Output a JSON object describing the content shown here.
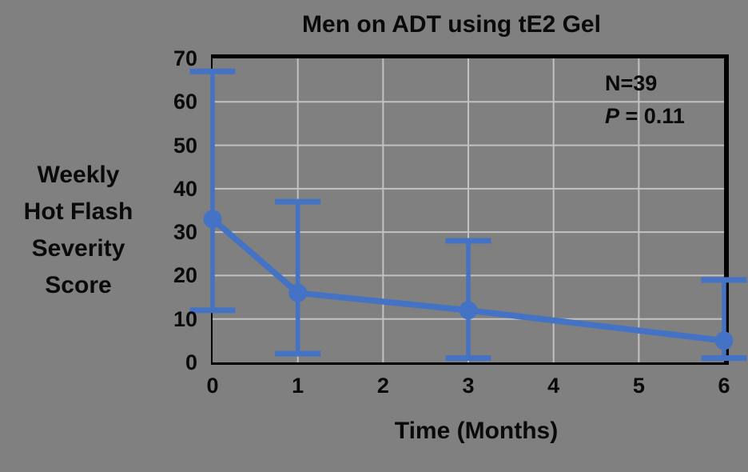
{
  "title": "Men on ADT using tE2 Gel",
  "y_axis": {
    "label_lines": [
      "Weekly",
      "Hot Flash",
      "Severity",
      "Score"
    ],
    "ticks": [
      0,
      10,
      20,
      30,
      40,
      50,
      60,
      70
    ]
  },
  "x_axis": {
    "label": "Time (Months)",
    "ticks": [
      0,
      1,
      2,
      3,
      4,
      5,
      6
    ]
  },
  "annotation": {
    "n": "N=39",
    "p_symbol": "P",
    "p_rest": " = 0.11"
  },
  "chart_data": {
    "type": "line",
    "title": "Men on ADT using tE2 Gel",
    "xlabel": "Time (Months)",
    "ylabel": "Weekly Hot Flash Severity Score",
    "x": [
      0,
      1,
      3,
      6
    ],
    "y": [
      33,
      16,
      12,
      5
    ],
    "error_bar_top": [
      67,
      37,
      28,
      19
    ],
    "error_bar_bottom": [
      12,
      2,
      1,
      1
    ],
    "xlim": [
      0,
      6
    ],
    "ylim": [
      0,
      70
    ],
    "grid": true,
    "legend": "none",
    "n": 39,
    "p_value": 0.11
  },
  "colors": {
    "background": "#808080",
    "series": "#4472C4",
    "grid": "#c2c2c2",
    "border": "#000000",
    "text": "#0a0a0a"
  }
}
